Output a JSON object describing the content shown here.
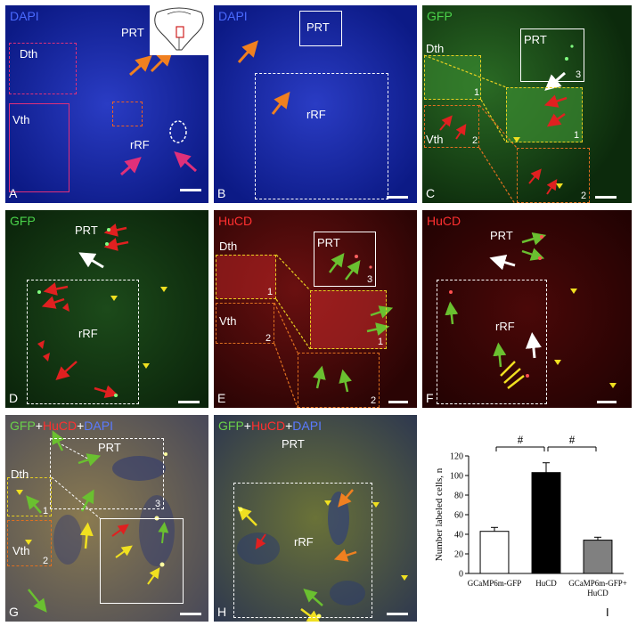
{
  "panels": {
    "A": {
      "letter": "A",
      "channel": "DAPI",
      "regions": {
        "prt": "PRT",
        "dth": "Dth",
        "vth": "Vth",
        "rrf": "rRF"
      }
    },
    "B": {
      "letter": "B",
      "channel": "DAPI",
      "regions": {
        "prt": "PRT",
        "rrf": "rRF"
      }
    },
    "C": {
      "letter": "C",
      "channel": "GFP",
      "regions": {
        "prt": "PRT",
        "dth": "Dth",
        "vth": "Vth"
      },
      "numbers": [
        "1",
        "2",
        "3",
        "1",
        "2"
      ]
    },
    "D": {
      "letter": "D",
      "channel": "GFP",
      "regions": {
        "prt": "PRT",
        "rrf": "rRF"
      }
    },
    "E": {
      "letter": "E",
      "channel": "HuCD",
      "regions": {
        "prt": "PRT",
        "dth": "Dth",
        "vth": "Vth"
      },
      "numbers": [
        "1",
        "2",
        "3",
        "1",
        "2"
      ]
    },
    "F": {
      "letter": "F",
      "channel": "HuCD",
      "regions": {
        "prt": "PRT",
        "rrf": "rRF"
      }
    },
    "G": {
      "letter": "G",
      "channel_parts": [
        "GFP",
        "+",
        "HuCD",
        "+",
        "DAPI"
      ],
      "regions": {
        "prt": "PRT",
        "dth": "Dth",
        "vth": "Vth"
      },
      "numbers": [
        "1",
        "2",
        "3"
      ]
    },
    "H": {
      "letter": "H",
      "channel_parts": [
        "GFP",
        "+",
        "HuCD",
        "+",
        "DAPI"
      ],
      "regions": {
        "prt": "PRT",
        "rrf": "rRF"
      }
    }
  },
  "colors": {
    "dapi": "#2233bb",
    "gfp": "#2fbf2f",
    "hucd": "#e02020",
    "white": "#ffffff"
  },
  "chart_data": {
    "type": "bar",
    "panel_letter": "I",
    "categories": [
      "GCaMP6m-GFP",
      "HuCD",
      "GCaMP6m-GFP+\nHuCD"
    ],
    "values": [
      43,
      103,
      34
    ],
    "errors": [
      4,
      10,
      3
    ],
    "fills": [
      "#ffffff",
      "#000000",
      "#808080"
    ],
    "ylabel": "Number labeled cells, n",
    "ylim": [
      0,
      120
    ],
    "yticks": [
      0,
      20,
      40,
      60,
      80,
      100,
      120
    ],
    "significance": [
      {
        "from": 0,
        "to": 1,
        "label": "#"
      },
      {
        "from": 1,
        "to": 2,
        "label": "#"
      }
    ]
  }
}
